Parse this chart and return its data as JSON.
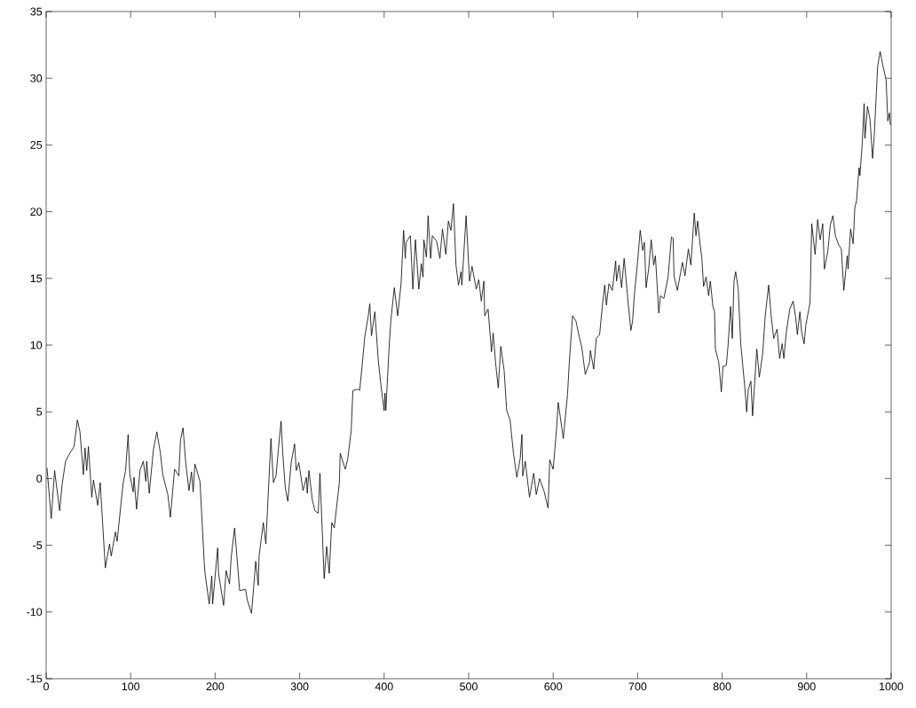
{
  "chart_data": {
    "type": "line",
    "color": "#000000",
    "marker": "none",
    "line_style": "solid",
    "grid": false,
    "xlim": [
      0,
      1000
    ],
    "ylim": [
      -15,
      35
    ],
    "xticks": [
      0,
      100,
      200,
      300,
      400,
      500,
      600,
      700,
      800,
      900,
      1000
    ],
    "yticks": [
      -15,
      -10,
      -5,
      0,
      5,
      10,
      15,
      20,
      25,
      30,
      35
    ],
    "x": [
      1,
      6,
      10,
      16,
      19,
      23,
      28,
      33,
      37,
      40,
      44,
      46,
      48,
      50,
      54,
      56,
      61,
      64,
      70,
      75,
      77,
      82,
      84,
      91,
      94,
      97,
      99,
      103,
      104,
      107,
      111,
      115,
      118,
      119,
      122,
      127,
      131,
      135,
      138,
      144,
      147,
      152,
      157,
      159,
      162,
      165,
      169,
      172,
      174,
      176,
      182,
      187,
      188,
      193,
      196,
      197,
      203,
      204,
      210,
      213,
      217,
      219,
      223,
      229,
      236,
      238,
      243,
      245,
      248,
      251,
      252,
      257,
      260,
      266,
      269,
      272,
      275,
      278,
      280,
      283,
      286,
      290,
      294,
      296,
      299,
      304,
      308,
      309,
      311,
      315,
      318,
      322,
      324,
      329,
      332,
      335,
      338,
      341,
      342,
      347,
      348,
      354,
      357,
      361,
      363,
      369,
      371,
      374,
      377,
      381,
      383,
      385,
      389,
      393,
      396,
      400,
      401,
      402,
      406,
      408,
      412,
      416,
      420,
      423,
      425,
      426,
      431,
      434,
      437,
      441,
      444,
      446,
      447,
      450,
      452,
      455,
      457,
      462,
      466,
      469,
      473,
      476,
      479,
      482,
      485,
      488,
      491,
      492,
      497,
      501,
      504,
      509,
      512,
      515,
      518,
      519,
      523,
      527,
      529,
      532,
      535,
      538,
      542,
      545,
      549,
      553,
      557,
      561,
      563,
      564,
      567,
      572,
      577,
      580,
      584,
      589,
      594,
      596,
      600,
      604,
      606,
      612,
      617,
      619,
      623,
      627,
      631,
      634,
      638,
      643,
      644,
      648,
      651,
      655,
      658,
      661,
      663,
      666,
      670,
      674,
      675,
      678,
      681,
      684,
      689,
      692,
      694,
      696,
      700,
      703,
      706,
      708,
      710,
      713,
      716,
      719,
      721,
      725,
      727,
      731,
      736,
      740,
      742,
      743,
      747,
      751,
      753,
      756,
      760,
      763,
      767,
      769,
      771,
      774,
      776,
      778,
      781,
      784,
      786,
      789,
      791,
      792,
      796,
      799,
      801,
      805,
      807,
      810,
      812,
      814,
      816,
      819,
      822,
      827,
      829,
      831,
      834,
      836,
      841,
      844,
      848,
      851,
      855,
      858,
      861,
      865,
      868,
      871,
      873,
      876,
      880,
      884,
      887,
      889,
      892,
      894,
      897,
      899,
      904,
      906,
      910,
      913,
      916,
      919,
      921,
      925,
      928,
      931,
      934,
      938,
      941,
      944,
      948,
      949,
      952,
      955,
      957,
      959,
      962,
      963,
      966,
      968,
      969,
      972,
      975,
      978,
      980,
      984,
      987,
      990,
      994,
      996,
      998,
      999
    ],
    "values": [
      0.8,
      -3,
      0.6,
      -2.4,
      -0.4,
      1.3,
      1.9,
      2.4,
      4.4,
      3.5,
      0.3,
      2.3,
      0.6,
      2.4,
      -1.4,
      -0.1,
      -2,
      -0.3,
      -6.7,
      -4.9,
      -5.8,
      -4,
      -4.7,
      -0.4,
      0.6,
      3.3,
      0.3,
      -1,
      0.1,
      -2.3,
      0.6,
      1.3,
      -0.2,
      1.3,
      -1.1,
      2.2,
      3.5,
      2,
      0.3,
      -1.2,
      -2.9,
      0.7,
      0.2,
      2.9,
      3.8,
      1.3,
      -0.9,
      0.5,
      -1,
      1.1,
      -0.2,
      -6.2,
      -7.1,
      -9.4,
      -7.3,
      -9.4,
      -5.2,
      -7.1,
      -9.5,
      -6.9,
      -7.9,
      -5.9,
      -3.7,
      -8.4,
      -8.3,
      -9.1,
      -10.1,
      -8.6,
      -6.2,
      -8,
      -5.8,
      -3.3,
      -4.9,
      3,
      -0.3,
      0.2,
      2.3,
      4.3,
      1.9,
      -0.7,
      -1.7,
      1.2,
      2.6,
      0.6,
      1.2,
      -0.9,
      0.1,
      -1.1,
      0.6,
      -1.6,
      -2.4,
      -2.6,
      0.4,
      -7.5,
      -5.1,
      -7.1,
      -3.3,
      -3.7,
      -3.1,
      -0.3,
      1.9,
      0.7,
      1.5,
      3.6,
      6.6,
      6.7,
      6.6,
      8.5,
      10.6,
      12.1,
      13.1,
      10.7,
      12.5,
      8.9,
      7.1,
      5.1,
      6.4,
      5.1,
      10,
      11.9,
      14.3,
      12.2,
      14.6,
      18.6,
      16.5,
      17.7,
      18.2,
      14.2,
      17.9,
      14.2,
      16.1,
      15.1,
      17.9,
      16.6,
      19.7,
      16.5,
      18.2,
      17.8,
      16.5,
      18.7,
      16.8,
      19.3,
      18.6,
      20.6,
      16,
      14.5,
      15.5,
      14.5,
      19.7,
      14.8,
      15.9,
      14.2,
      14.9,
      13.3,
      14.8,
      12.2,
      12.7,
      9.5,
      10.9,
      8.6,
      6.8,
      9.9,
      8.1,
      5.1,
      4.4,
      1.9,
      0.1,
      1.5,
      3.3,
      0.2,
      1.3,
      -1.4,
      0.4,
      -1.2,
      0,
      -0.9,
      -2.2,
      1.4,
      0.7,
      3.7,
      5.7,
      3,
      6.3,
      8.6,
      12.2,
      11.8,
      10.6,
      9.8,
      7.8,
      8.7,
      9.6,
      8.2,
      10.5,
      10.8,
      12.8,
      14.5,
      13,
      14.6,
      14.1,
      16.3,
      14.8,
      16,
      14.3,
      16.5,
      13,
      11.1,
      11.8,
      13.7,
      16.3,
      18.6,
      17.1,
      17.7,
      14.3,
      15.7,
      17.9,
      16,
      16.7,
      12.4,
      13.7,
      13.5,
      15.1,
      18.1,
      18,
      15.2,
      14.1,
      15.5,
      16.2,
      15.2,
      17.2,
      16,
      19.9,
      18.2,
      19.3,
      17.5,
      16.5,
      14.4,
      15.1,
      13.7,
      14.8,
      12.9,
      12.5,
      9.7,
      8.7,
      6.5,
      8.4,
      8.5,
      10,
      12.9,
      10.5,
      14.8,
      15.5,
      14.2,
      10.1,
      6.7,
      5,
      6.7,
      7.3,
      4.7,
      9.7,
      7.6,
      9.4,
      12.2,
      14.5,
      12.2,
      10.5,
      11.2,
      9,
      10.1,
      9,
      11,
      12.7,
      13.3,
      12.1,
      10.8,
      12.5,
      11,
      10.1,
      11.5,
      13.2,
      19.1,
      16.8,
      19.4,
      17.9,
      19.1,
      15.7,
      17,
      19,
      19.7,
      18.2,
      17.5,
      17.2,
      14.1,
      16.7,
      15.7,
      18.7,
      17.6,
      20.3,
      20.8,
      23.3,
      22.7,
      25.3,
      28.1,
      25.5,
      27.9,
      26.9,
      24,
      25.7,
      30.9,
      32,
      31,
      29.9,
      26.8,
      27.4,
      26.5
    ]
  }
}
